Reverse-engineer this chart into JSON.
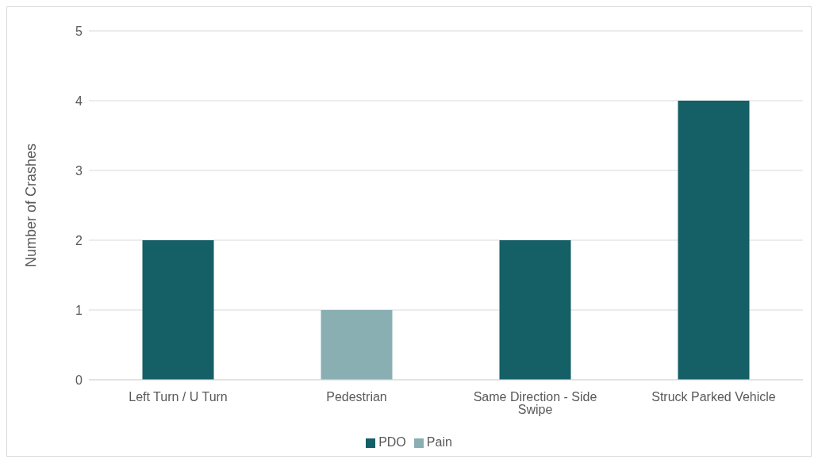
{
  "chart_data": {
    "type": "bar",
    "stacked": true,
    "ylabel": "Number of Crashes",
    "categories": [
      "Left Turn / U Turn",
      "Pedestrian",
      "Same Direction - Side Swipe",
      "Struck Parked Vehicle"
    ],
    "series": [
      {
        "name": "PDO",
        "color": "#155f66",
        "values": [
          2,
          null,
          2,
          4
        ]
      },
      {
        "name": "Pain",
        "color": "#8aafb3",
        "values": [
          null,
          1,
          null,
          null
        ]
      }
    ],
    "ylim": [
      0,
      5
    ],
    "yticks": [
      0,
      1,
      2,
      3,
      4,
      5
    ],
    "grid": "y",
    "legend": "bottom"
  }
}
